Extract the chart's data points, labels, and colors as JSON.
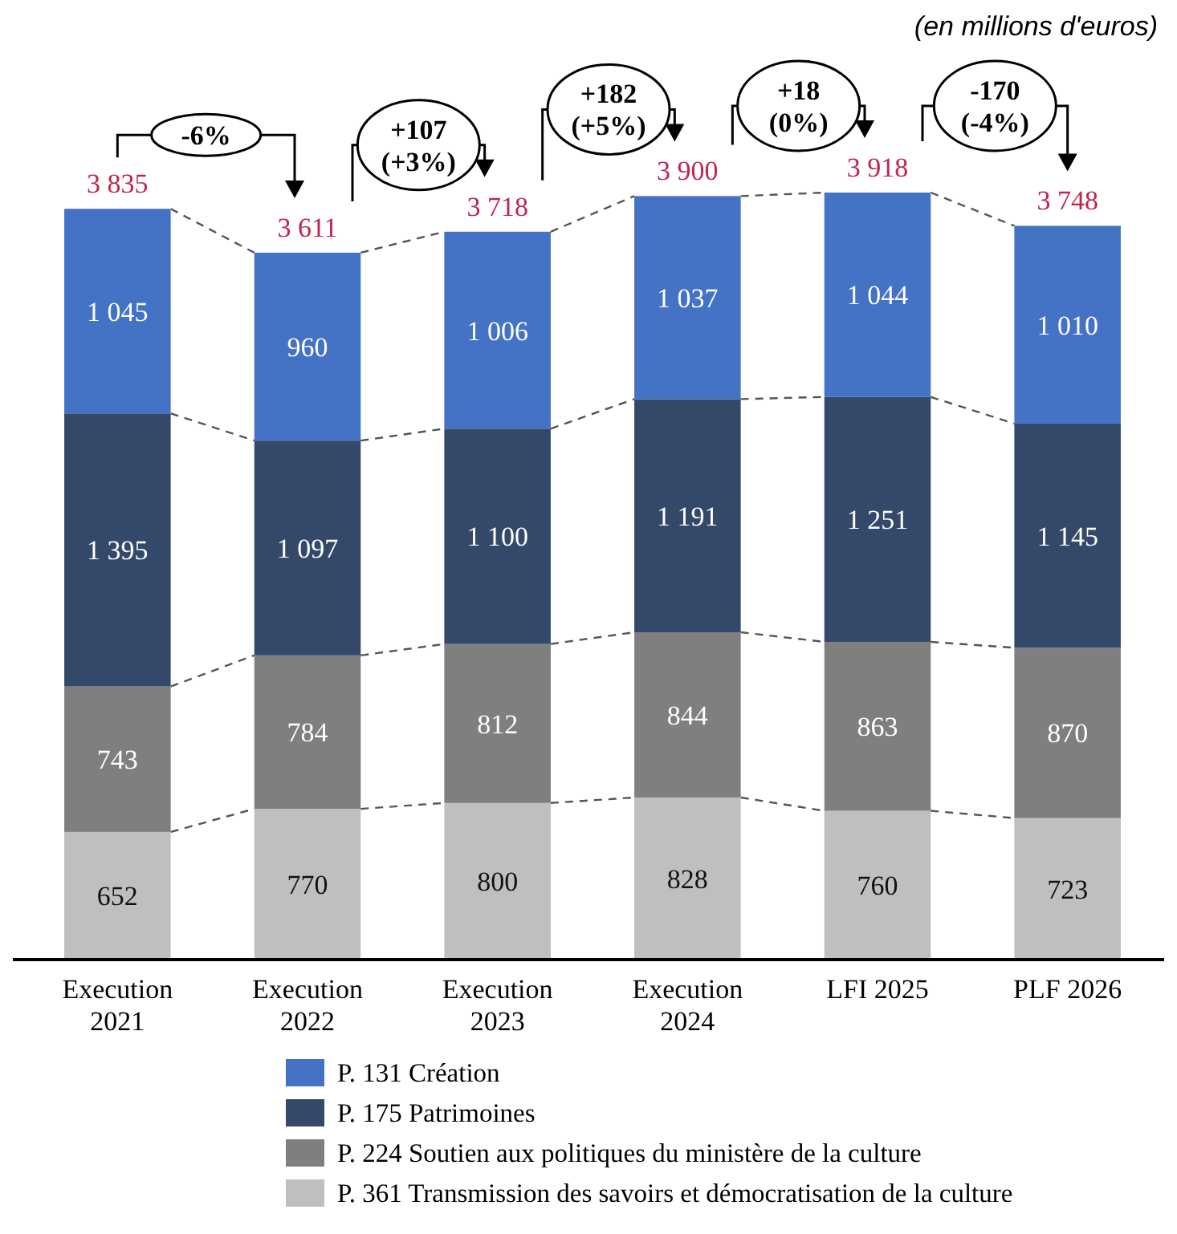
{
  "chart_data": {
    "type": "bar",
    "stacked": true,
    "subtitle": "(en millions d'euros)",
    "categories": [
      "Execution 2021",
      "Execution 2022",
      "Execution 2023",
      "Execution 2024",
      "LFI 2025",
      "PLF 2026"
    ],
    "series": [
      {
        "name": "P. 361 Transmission des savoirs et démocratisation de la culture",
        "color": "#bfbfbf",
        "values": [
          652,
          770,
          800,
          828,
          760,
          723
        ],
        "value_labels": [
          "652",
          "770",
          "800",
          "828",
          "760",
          "723"
        ]
      },
      {
        "name": "P. 224 Soutien aux politiques du ministère de la culture",
        "color": "#7f7f7f",
        "values": [
          743,
          784,
          812,
          844,
          863,
          870
        ],
        "value_labels": [
          "743",
          "784",
          "812",
          "844",
          "863",
          "870"
        ]
      },
      {
        "name": "P. 175 Patrimoines",
        "color": "#34496a",
        "values": [
          1395,
          1097,
          1100,
          1191,
          1251,
          1145
        ],
        "value_labels": [
          "1 395",
          "1 097",
          "1 100",
          "1 191",
          "1 251",
          "1 145"
        ]
      },
      {
        "name": "P. 131 Création",
        "color": "#4472c4",
        "values": [
          1045,
          960,
          1006,
          1037,
          1044,
          1010
        ],
        "value_labels": [
          "1 045",
          "960",
          "1 006",
          "1 037",
          "1 044",
          "1 010"
        ]
      }
    ],
    "totals": [
      "3 835",
      "3 611",
      "3 718",
      "3 900",
      "3 918",
      "3 748"
    ],
    "annotations": [
      "-6%",
      "+107 (+3%)",
      "+182 (+5%)",
      "+18 (0%)",
      "-170 (-4%)"
    ],
    "legend": "bottom"
  }
}
